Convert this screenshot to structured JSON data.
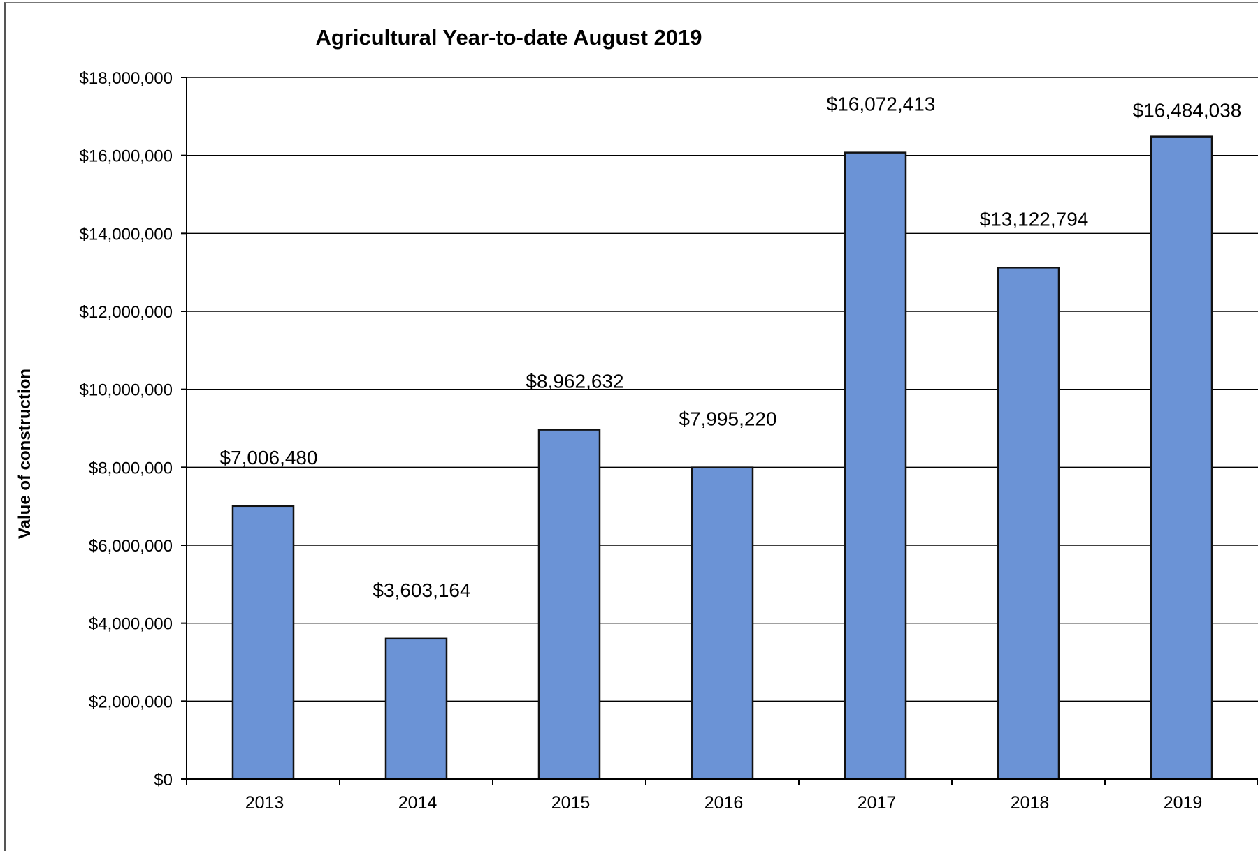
{
  "chart_data": {
    "type": "bar",
    "title": "Agricultural Year-to-date August 2019",
    "xlabel": "",
    "ylabel": "Value of construction",
    "categories": [
      "2013",
      "2014",
      "2015",
      "2016",
      "2017",
      "2018",
      "2019"
    ],
    "values": [
      7006480,
      3603164,
      8962632,
      7995220,
      16072413,
      13122794,
      16484038
    ],
    "data_labels": [
      "$7,006,480",
      "$3,603,164",
      "$8,962,632",
      "$7,995,220",
      "$16,072,413",
      "$13,122,794",
      "$16,484,038"
    ],
    "ylim": [
      0,
      18000000
    ],
    "yticks": [
      0,
      2000000,
      4000000,
      6000000,
      8000000,
      10000000,
      12000000,
      14000000,
      16000000,
      18000000
    ],
    "ytick_labels": [
      "$0",
      "$2,000,000",
      "$4,000,000",
      "$6,000,000",
      "$8,000,000",
      "$10,000,000",
      "$12,000,000",
      "$14,000,000",
      "$16,000,000",
      "$18,000,000"
    ],
    "grid": true,
    "legend": "none",
    "bar_color": "#6b93d6"
  }
}
